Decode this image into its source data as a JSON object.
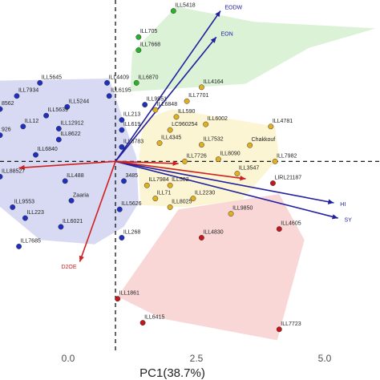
{
  "chart_data": {
    "type": "scatter",
    "xlabel": "PC1(38.7%)",
    "ylabel": "",
    "xlim": [
      -2.75,
      6.3
    ],
    "ylim": [
      -4.35,
      3.7
    ],
    "x_ticks": [
      0.0,
      2.5,
      5.0
    ],
    "x_tick_labels": [
      "0.0",
      "2.5",
      "5.0"
    ],
    "grid": false,
    "reference_lines": {
      "vertical": 0,
      "horizontal": 0,
      "style": "dashed"
    },
    "colors": {
      "green": "#2bb02b",
      "blue": "#1f2fbf",
      "yellow": "#e0b020",
      "red": "#c4161c",
      "hull_green": "#cfeec9",
      "hull_blue": "#c9cdee",
      "hull_yellow": "#fbf1c4",
      "hull_red": "#f7c9c9",
      "vector_blue": "#2020a0",
      "vector_red": "#d02020"
    },
    "hulls": [
      {
        "group": "green",
        "points": [
          [
            1.45,
            3.55
          ],
          [
            3.3,
            3.2
          ],
          [
            6.2,
            3.05
          ],
          [
            4.6,
            2.6
          ],
          [
            3.1,
            1.78
          ],
          [
            0.35,
            1.6
          ],
          [
            0.4,
            2.5
          ]
        ]
      },
      {
        "group": "blue",
        "points": [
          [
            -2.8,
            1.85
          ],
          [
            -0.15,
            1.9
          ],
          [
            0.2,
            0.9
          ],
          [
            0.5,
            0.1
          ],
          [
            0.55,
            -0.95
          ],
          [
            0.2,
            -1.5
          ],
          [
            -0.5,
            -1.9
          ],
          [
            -1.8,
            -1.8
          ],
          [
            -2.8,
            -1.0
          ]
        ]
      },
      {
        "group": "yellow",
        "points": [
          [
            1.35,
            1.2
          ],
          [
            3.8,
            0.8
          ],
          [
            3.9,
            0.1
          ],
          [
            3.0,
            -0.9
          ],
          [
            1.6,
            -1.05
          ],
          [
            0.6,
            -1.0
          ],
          [
            0.55,
            -0.1
          ],
          [
            0.65,
            0.95
          ]
        ]
      },
      {
        "group": "red",
        "points": [
          [
            0.05,
            -3.1
          ],
          [
            1.5,
            -1.1
          ],
          [
            3.9,
            -0.75
          ],
          [
            4.5,
            -1.8
          ],
          [
            3.85,
            -4.1
          ],
          [
            1.1,
            -3.6
          ]
        ]
      }
    ],
    "series": [
      {
        "name": "green",
        "points": [
          {
            "label": "ILL5418",
            "x": 1.38,
            "y": 3.45
          },
          {
            "label": "ILL705",
            "x": 0.55,
            "y": 2.85
          },
          {
            "label": "ILL7668",
            "x": 0.55,
            "y": 2.55
          },
          {
            "label": "ILL6870",
            "x": 0.5,
            "y": 1.8
          }
        ]
      },
      {
        "name": "blue",
        "points": [
          {
            "label": "ILL5645",
            "x": -1.8,
            "y": 1.8
          },
          {
            "label": "ILL4409",
            "x": -0.2,
            "y": 1.8
          },
          {
            "label": "ILL7934",
            "x": -2.35,
            "y": 1.5
          },
          {
            "label": "ILL6195",
            "x": -0.15,
            "y": 1.5
          },
          {
            "label": "ILL9951",
            "x": 0.7,
            "y": 1.3
          },
          {
            "label": "ILL5244",
            "x": -1.15,
            "y": 1.25
          },
          {
            "label": "8562",
            "x": -2.75,
            "y": 1.2
          },
          {
            "label": "ILL5639",
            "x": -1.65,
            "y": 1.05
          },
          {
            "label": "ILL213",
            "x": 0.15,
            "y": 0.95
          },
          {
            "label": "ILL12912",
            "x": -1.35,
            "y": 0.75
          },
          {
            "label": "ILL619",
            "x": 0.15,
            "y": 0.72
          },
          {
            "label": "ILL12",
            "x": -2.2,
            "y": 0.8
          },
          {
            "label": "926",
            "x": -2.75,
            "y": 0.6
          },
          {
            "label": "ILL8622",
            "x": -1.35,
            "y": 0.5
          },
          {
            "label": "ILL6783",
            "x": 0.15,
            "y": 0.33
          },
          {
            "label": "ILL6840",
            "x": -1.9,
            "y": 0.15
          },
          {
            "label": "ILL488",
            "x": -1.2,
            "y": -0.45
          },
          {
            "label": "ILL88527",
            "x": -2.75,
            "y": -0.35
          },
          {
            "label": "3485",
            "x": 0.2,
            "y": -0.45
          },
          {
            "label": "Zaaria",
            "x": -1.05,
            "y": -0.9
          },
          {
            "label": "ILL9553",
            "x": -2.45,
            "y": -1.05
          },
          {
            "label": "ILL5626",
            "x": 0.1,
            "y": -1.1
          },
          {
            "label": "ILL223",
            "x": -2.15,
            "y": -1.3
          },
          {
            "label": "ILL6021",
            "x": -1.3,
            "y": -1.5
          },
          {
            "label": "ILL268",
            "x": 0.15,
            "y": -1.75
          },
          {
            "label": "ILL7685",
            "x": -2.3,
            "y": -1.95
          }
        ]
      },
      {
        "name": "yellow",
        "points": [
          {
            "label": "ILL4164",
            "x": 2.05,
            "y": 1.7
          },
          {
            "label": "ILL7701",
            "x": 1.7,
            "y": 1.38
          },
          {
            "label": "ILL6848",
            "x": 0.95,
            "y": 1.18
          },
          {
            "label": "ILL590",
            "x": 1.45,
            "y": 1.02
          },
          {
            "label": "LC960254",
            "x": 1.3,
            "y": 0.72
          },
          {
            "label": "ILL6002",
            "x": 2.15,
            "y": 0.85
          },
          {
            "label": "ILL4781",
            "x": 3.7,
            "y": 0.8
          },
          {
            "label": "ILL4345",
            "x": 1.05,
            "y": 0.42
          },
          {
            "label": "ILL7532",
            "x": 2.05,
            "y": 0.38
          },
          {
            "label": "Chakkouf",
            "x": 3.2,
            "y": 0.37
          },
          {
            "label": "ILL8090",
            "x": 2.45,
            "y": 0.05
          },
          {
            "label": "ILL7726",
            "x": 1.65,
            "y": 0.0
          },
          {
            "label": "ILL7982",
            "x": 3.8,
            "y": 0.0
          },
          {
            "label": "ILL3547",
            "x": 2.9,
            "y": -0.28
          },
          {
            "label": "ILL7984",
            "x": 0.75,
            "y": -0.55
          },
          {
            "label": "ILL502",
            "x": 1.3,
            "y": -0.55
          },
          {
            "label": "ILL71",
            "x": 0.95,
            "y": -0.85
          },
          {
            "label": "ILL2230",
            "x": 1.85,
            "y": -0.85
          },
          {
            "label": "ILL8025",
            "x": 1.3,
            "y": -1.05
          },
          {
            "label": "ILL9850",
            "x": 2.75,
            "y": -1.2
          }
        ]
      },
      {
        "name": "red",
        "points": [
          {
            "label": "LIRL21187",
            "x": 3.75,
            "y": -0.5
          },
          {
            "label": "ILL4605",
            "x": 3.9,
            "y": -1.55
          },
          {
            "label": "ILL4830",
            "x": 2.05,
            "y": -1.75
          },
          {
            "label": "ILL1861",
            "x": 0.05,
            "y": -3.15
          },
          {
            "label": "ILL6415",
            "x": 0.65,
            "y": -3.7
          },
          {
            "label": "ILL7723",
            "x": 3.9,
            "y": -3.85
          }
        ]
      }
    ],
    "vectors": [
      {
        "label": "EODW",
        "x": 2.5,
        "y": 3.45,
        "color_key": "vector_blue"
      },
      {
        "label": "EON",
        "x": 2.4,
        "y": 2.85,
        "color_key": "vector_blue"
      },
      {
        "label": "HI",
        "x": 5.2,
        "y": -0.95,
        "color_key": "vector_blue"
      },
      {
        "label": "SY",
        "x": 5.3,
        "y": -1.3,
        "color_key": "vector_blue"
      },
      {
        "label": "D2OE",
        "x": -0.85,
        "y": -2.3,
        "color_key": "vector_red"
      },
      {
        "label": "",
        "x": 1.5,
        "y": -0.05,
        "color_key": "vector_red"
      },
      {
        "label": "",
        "x": 3.1,
        "y": -0.4,
        "color_key": "vector_red"
      },
      {
        "label": "",
        "x": -2.3,
        "y": -0.15,
        "color_key": "vector_red"
      }
    ]
  }
}
